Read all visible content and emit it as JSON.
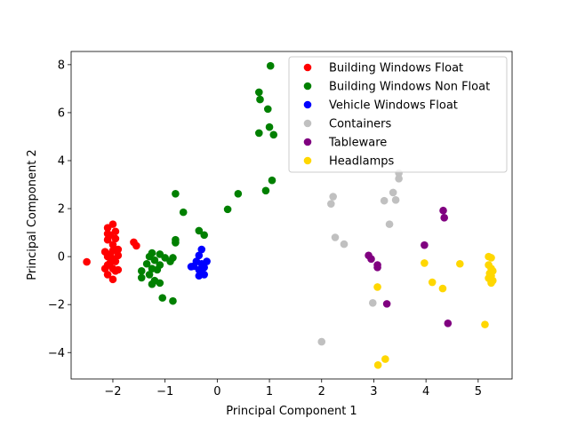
{
  "chart_data": {
    "type": "scatter",
    "xlabel": "Principal Component 1",
    "ylabel": "Principal Component 2",
    "xlim": [
      -2.8,
      5.65
    ],
    "ylim": [
      -5.1,
      8.55
    ],
    "xticks": [
      -2,
      -1,
      0,
      1,
      2,
      3,
      4,
      5
    ],
    "yticks": [
      -4,
      -2,
      0,
      2,
      4,
      6,
      8
    ],
    "grid": false,
    "legend_position": "upper-right",
    "series": [
      {
        "name": "Building Windows Float",
        "color": "#ff0000",
        "points": [
          [
            -2.5,
            -0.22
          ],
          [
            -2.1,
            1.2
          ],
          [
            -2.0,
            1.35
          ],
          [
            -2.05,
            0.9
          ],
          [
            -1.95,
            0.75
          ],
          [
            -2.1,
            0.7
          ],
          [
            -2.0,
            0.5
          ],
          [
            -1.9,
            0.3
          ],
          [
            -2.05,
            0.1
          ],
          [
            -2.1,
            0.0
          ],
          [
            -2.0,
            -0.1
          ],
          [
            -1.95,
            -0.2
          ],
          [
            -2.1,
            -0.35
          ],
          [
            -2.0,
            -0.5
          ],
          [
            -1.95,
            -0.6
          ],
          [
            -2.1,
            -0.75
          ],
          [
            -2.0,
            -0.95
          ],
          [
            -1.6,
            0.6
          ],
          [
            -1.55,
            0.45
          ],
          [
            -2.15,
            0.2
          ],
          [
            -1.9,
            0.05
          ],
          [
            -2.0,
            0.25
          ],
          [
            -2.05,
            -0.25
          ],
          [
            -1.9,
            -0.55
          ],
          [
            -2.15,
            -0.5
          ],
          [
            -1.95,
            1.05
          ],
          [
            -2.1,
            0.95
          ]
        ]
      },
      {
        "name": "Building Windows Non Float",
        "color": "#008000",
        "points": [
          [
            1.02,
            7.95
          ],
          [
            0.8,
            6.85
          ],
          [
            0.82,
            6.55
          ],
          [
            0.97,
            6.15
          ],
          [
            1.0,
            5.4
          ],
          [
            0.8,
            5.15
          ],
          [
            1.08,
            5.08
          ],
          [
            1.05,
            3.18
          ],
          [
            0.93,
            2.75
          ],
          [
            0.4,
            2.62
          ],
          [
            -0.8,
            2.62
          ],
          [
            0.2,
            1.97
          ],
          [
            -0.65,
            1.85
          ],
          [
            -0.35,
            1.08
          ],
          [
            -0.25,
            0.9
          ],
          [
            -0.8,
            0.7
          ],
          [
            -0.8,
            0.58
          ],
          [
            -1.25,
            0.15
          ],
          [
            -1.1,
            0.1
          ],
          [
            -1.3,
            0.0
          ],
          [
            -1.0,
            -0.05
          ],
          [
            -1.2,
            -0.15
          ],
          [
            -0.85,
            -0.05
          ],
          [
            -0.9,
            -0.2
          ],
          [
            -1.35,
            -0.3
          ],
          [
            -1.1,
            -0.35
          ],
          [
            -1.25,
            -0.5
          ],
          [
            -1.45,
            -0.6
          ],
          [
            -1.15,
            -0.55
          ],
          [
            -1.3,
            -0.75
          ],
          [
            -1.45,
            -0.88
          ],
          [
            -1.2,
            -1.0
          ],
          [
            -1.1,
            -1.1
          ],
          [
            -1.25,
            -1.15
          ],
          [
            -1.05,
            -1.72
          ],
          [
            -0.85,
            -1.85
          ]
        ]
      },
      {
        "name": "Vehicle Windows Float",
        "color": "#0000ff",
        "points": [
          [
            -0.3,
            0.3
          ],
          [
            -0.35,
            0.05
          ],
          [
            -0.2,
            -0.2
          ],
          [
            -0.3,
            -0.3
          ],
          [
            -0.45,
            -0.4
          ],
          [
            -0.25,
            -0.45
          ],
          [
            -0.35,
            -0.55
          ],
          [
            -0.3,
            -0.7
          ],
          [
            -0.35,
            -0.8
          ],
          [
            -0.25,
            -0.75
          ],
          [
            -0.4,
            -0.2
          ],
          [
            -0.5,
            -0.42
          ]
        ]
      },
      {
        "name": "Containers",
        "color": "#c0c0c0",
        "points": [
          [
            3.48,
            3.48
          ],
          [
            3.48,
            3.25
          ],
          [
            3.37,
            2.67
          ],
          [
            3.42,
            2.36
          ],
          [
            3.2,
            2.33
          ],
          [
            2.22,
            2.5
          ],
          [
            2.18,
            2.2
          ],
          [
            3.3,
            1.35
          ],
          [
            2.26,
            0.8
          ],
          [
            2.43,
            0.52
          ],
          [
            2.98,
            -1.93
          ],
          [
            2.0,
            -3.55
          ]
        ]
      },
      {
        "name": "Tableware",
        "color": "#800080",
        "points": [
          [
            4.33,
            1.92
          ],
          [
            4.35,
            1.62
          ],
          [
            3.97,
            0.48
          ],
          [
            2.9,
            0.05
          ],
          [
            2.95,
            -0.1
          ],
          [
            3.07,
            -0.35
          ],
          [
            3.07,
            -0.45
          ],
          [
            3.25,
            -1.97
          ],
          [
            4.42,
            -2.78
          ]
        ]
      },
      {
        "name": "Headlamps",
        "color": "#ffd700",
        "points": [
          [
            5.2,
            0.0
          ],
          [
            5.25,
            -0.05
          ],
          [
            5.2,
            -0.35
          ],
          [
            5.25,
            -0.5
          ],
          [
            5.28,
            -0.6
          ],
          [
            5.22,
            -0.7
          ],
          [
            5.25,
            -0.8
          ],
          [
            5.2,
            -0.9
          ],
          [
            5.28,
            -1.0
          ],
          [
            5.25,
            -1.1
          ],
          [
            3.97,
            -0.27
          ],
          [
            4.65,
            -0.3
          ],
          [
            4.12,
            -1.07
          ],
          [
            4.32,
            -1.33
          ],
          [
            3.07,
            -1.27
          ],
          [
            5.13,
            -2.83
          ],
          [
            3.22,
            -4.27
          ],
          [
            3.08,
            -4.52
          ]
        ]
      }
    ]
  }
}
